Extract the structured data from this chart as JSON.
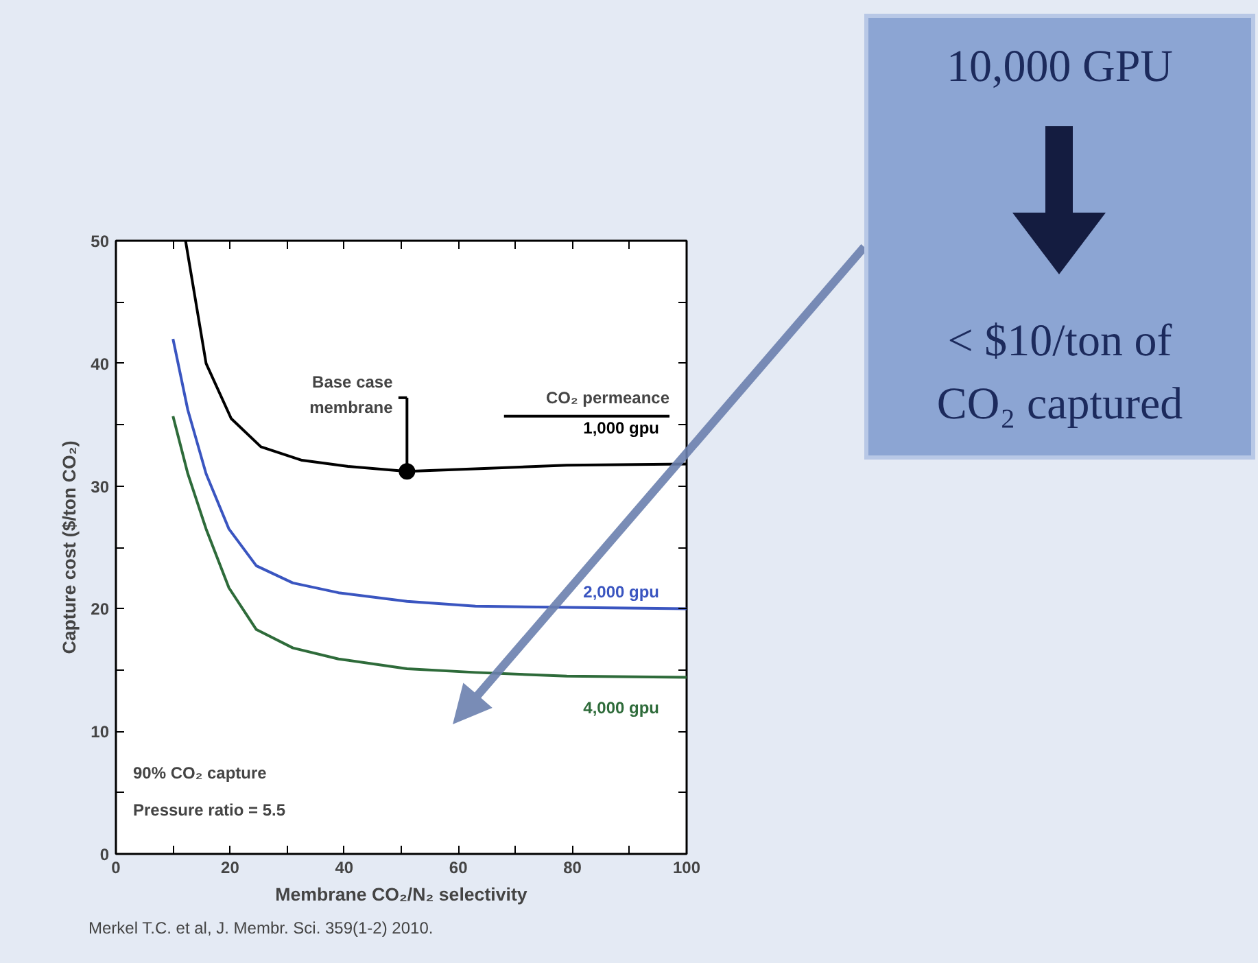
{
  "chart_data": {
    "type": "line",
    "xlabel": "Membrane CO₂/N₂ selectivity",
    "ylabel": "Capture cost ($/ton CO₂)",
    "xlim": [
      0,
      100
    ],
    "ylim": [
      0,
      50
    ],
    "xticks": [
      0,
      {
        "value": 10,
        "label": null
      },
      20,
      {
        "value": 30,
        "label": null
      },
      40,
      {
        "value": 50,
        "label": null
      },
      60,
      {
        "value": 70,
        "label": null
      },
      80,
      {
        "value": 90,
        "label": null
      },
      100
    ],
    "yticks": [
      0,
      {
        "value": 5,
        "label": null
      },
      10,
      {
        "value": 15,
        "label": null
      },
      20,
      {
        "value": 25,
        "label": null
      },
      30,
      {
        "value": 35,
        "label": null
      },
      40,
      {
        "value": 45,
        "label": null
      },
      50
    ],
    "grid": false,
    "legend": "right",
    "marker": "none",
    "line_style": "solid",
    "series": [
      {
        "name": "1,000 gpu",
        "color": "#000000",
        "x": [
          12.2,
          15.8,
          20.2,
          25.4,
          32.6,
          40.7,
          51,
          63,
          79,
          100
        ],
        "values": [
          50,
          40.0,
          35.5,
          33.2,
          32.1,
          31.6,
          31.2,
          31.4,
          31.7,
          31.8
        ]
      },
      {
        "name": "2,000 gpu",
        "color": "#3a55c0",
        "x": [
          10,
          12.6,
          15.8,
          19.8,
          24.6,
          31,
          39,
          51,
          63,
          79,
          100
        ],
        "values": [
          42.0,
          36.2,
          31.0,
          26.5,
          23.5,
          22.1,
          21.3,
          20.6,
          20.2,
          20.1,
          20.0
        ]
      },
      {
        "name": "4,000 gpu",
        "color": "#2e6b3a",
        "x": [
          10,
          12.6,
          15.8,
          19.8,
          24.6,
          31,
          39,
          51,
          63,
          79,
          100
        ],
        "values": [
          35.7,
          31.0,
          26.5,
          21.7,
          18.3,
          16.8,
          15.9,
          15.1,
          14.8,
          14.5,
          14.4
        ]
      }
    ],
    "annotations": [
      {
        "text": "Base case membrane",
        "x": 51,
        "y": 31.2
      },
      "CO₂ permeance",
      "90% CO₂ capture",
      "Pressure ratio = 5.5",
      "Merkel T.C. et al, J. Membr. Sci. 359(1-2) 2010.",
      "10,000 GPU",
      "< $10/ton of CO₂ captured"
    ]
  }
}
